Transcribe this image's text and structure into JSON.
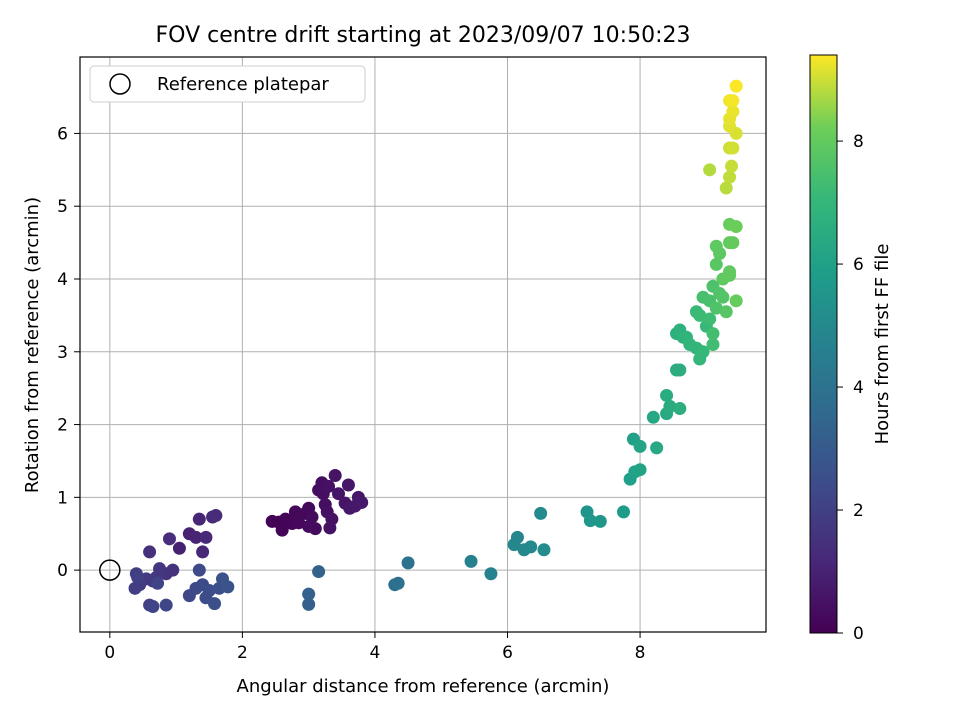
{
  "chart_data": {
    "type": "scatter",
    "title": "FOV centre drift starting at 2023/09/07 10:50:23",
    "xlabel": "Angular distance from reference (arcmin)",
    "ylabel": "Rotation from reference (arcmin)",
    "xlim": [
      -0.45,
      9.9
    ],
    "ylim": [
      -0.85,
      7.05
    ],
    "x_ticks": [
      0,
      2,
      4,
      6,
      8
    ],
    "y_ticks": [
      0,
      1,
      2,
      3,
      4,
      5,
      6
    ],
    "grid": true,
    "legend": {
      "placement": "top-left",
      "entries": [
        "Reference platepar"
      ]
    },
    "reference_point": {
      "name": "Reference platepar",
      "x": 0,
      "y": 0,
      "marker": "open-circle"
    },
    "colorbar": {
      "label": "Hours from first FF file",
      "min": 0,
      "max": 9.4,
      "ticks": [
        0,
        2,
        4,
        6,
        8
      ],
      "colormap": "viridis"
    },
    "points": [
      {
        "x": 2.45,
        "y": 0.67,
        "h": 0.05
      },
      {
        "x": 2.55,
        "y": 0.66,
        "h": 0.08
      },
      {
        "x": 2.6,
        "y": 0.55,
        "h": 0.1
      },
      {
        "x": 2.65,
        "y": 0.7,
        "h": 0.12
      },
      {
        "x": 2.75,
        "y": 0.64,
        "h": 0.15
      },
      {
        "x": 2.8,
        "y": 0.8,
        "h": 0.18
      },
      {
        "x": 2.85,
        "y": 0.65,
        "h": 0.2
      },
      {
        "x": 2.95,
        "y": 0.78,
        "h": 0.22
      },
      {
        "x": 3.0,
        "y": 0.85,
        "h": 0.25
      },
      {
        "x": 3.0,
        "y": 0.6,
        "h": 0.28
      },
      {
        "x": 3.05,
        "y": 0.73,
        "h": 0.3
      },
      {
        "x": 3.1,
        "y": 0.57,
        "h": 0.32
      },
      {
        "x": 3.15,
        "y": 1.1,
        "h": 0.35
      },
      {
        "x": 3.2,
        "y": 1.2,
        "h": 0.38
      },
      {
        "x": 3.22,
        "y": 1.05,
        "h": 0.4
      },
      {
        "x": 3.25,
        "y": 0.9,
        "h": 0.42
      },
      {
        "x": 3.28,
        "y": 0.8,
        "h": 0.45
      },
      {
        "x": 3.3,
        "y": 1.15,
        "h": 0.48
      },
      {
        "x": 3.32,
        "y": 0.58,
        "h": 0.5
      },
      {
        "x": 3.35,
        "y": 0.7,
        "h": 0.52
      },
      {
        "x": 3.4,
        "y": 1.3,
        "h": 0.55
      },
      {
        "x": 3.45,
        "y": 1.05,
        "h": 0.58
      },
      {
        "x": 3.55,
        "y": 0.92,
        "h": 0.6
      },
      {
        "x": 3.6,
        "y": 1.17,
        "h": 0.62
      },
      {
        "x": 3.62,
        "y": 0.85,
        "h": 0.65
      },
      {
        "x": 3.7,
        "y": 0.88,
        "h": 0.68
      },
      {
        "x": 3.75,
        "y": 1.0,
        "h": 0.7
      },
      {
        "x": 3.8,
        "y": 0.93,
        "h": 0.72
      },
      {
        "x": 1.05,
        "y": 0.3,
        "h": 0.95
      },
      {
        "x": 1.2,
        "y": 0.5,
        "h": 1.0
      },
      {
        "x": 1.3,
        "y": 0.45,
        "h": 1.05
      },
      {
        "x": 1.35,
        "y": 0.7,
        "h": 1.1
      },
      {
        "x": 1.4,
        "y": 0.25,
        "h": 1.15
      },
      {
        "x": 1.45,
        "y": 0.45,
        "h": 1.2
      },
      {
        "x": 1.55,
        "y": 0.73,
        "h": 1.25
      },
      {
        "x": 1.6,
        "y": 0.75,
        "h": 1.3
      },
      {
        "x": 0.9,
        "y": 0.43,
        "h": 1.35
      },
      {
        "x": 0.6,
        "y": 0.25,
        "h": 1.45
      },
      {
        "x": 0.95,
        "y": 0.0,
        "h": 1.55
      },
      {
        "x": 0.85,
        "y": -0.05,
        "h": 1.6
      },
      {
        "x": 0.75,
        "y": 0.02,
        "h": 1.65
      },
      {
        "x": 0.7,
        "y": -0.1,
        "h": 1.7
      },
      {
        "x": 0.65,
        "y": -0.15,
        "h": 1.75
      },
      {
        "x": 0.55,
        "y": -0.12,
        "h": 1.8
      },
      {
        "x": 0.45,
        "y": -0.2,
        "h": 1.85
      },
      {
        "x": 0.4,
        "y": -0.05,
        "h": 1.9
      },
      {
        "x": 0.38,
        "y": -0.25,
        "h": 1.95
      },
      {
        "x": 0.42,
        "y": -0.1,
        "h": 2.0
      },
      {
        "x": 0.6,
        "y": -0.48,
        "h": 2.05
      },
      {
        "x": 0.65,
        "y": -0.5,
        "h": 2.1
      },
      {
        "x": 0.72,
        "y": -0.18,
        "h": 2.15
      },
      {
        "x": 0.85,
        "y": -0.48,
        "h": 2.2
      },
      {
        "x": 1.2,
        "y": -0.35,
        "h": 2.25
      },
      {
        "x": 1.3,
        "y": -0.25,
        "h": 2.3
      },
      {
        "x": 1.35,
        "y": 0.0,
        "h": 2.35
      },
      {
        "x": 1.4,
        "y": -0.2,
        "h": 2.4
      },
      {
        "x": 1.45,
        "y": -0.38,
        "h": 2.45
      },
      {
        "x": 1.5,
        "y": -0.28,
        "h": 2.5
      },
      {
        "x": 1.58,
        "y": -0.46,
        "h": 2.55
      },
      {
        "x": 1.65,
        "y": -0.25,
        "h": 2.6
      },
      {
        "x": 1.7,
        "y": -0.12,
        "h": 2.65
      },
      {
        "x": 1.78,
        "y": -0.23,
        "h": 2.7
      },
      {
        "x": 3.0,
        "y": -0.47,
        "h": 3.2
      },
      {
        "x": 3.0,
        "y": -0.33,
        "h": 3.25
      },
      {
        "x": 3.15,
        "y": -0.02,
        "h": 3.3
      },
      {
        "x": 4.3,
        "y": -0.2,
        "h": 3.9
      },
      {
        "x": 4.35,
        "y": -0.18,
        "h": 3.95
      },
      {
        "x": 4.5,
        "y": 0.1,
        "h": 4.0
      },
      {
        "x": 5.45,
        "y": 0.12,
        "h": 4.6
      },
      {
        "x": 5.75,
        "y": -0.05,
        "h": 4.7
      },
      {
        "x": 6.1,
        "y": 0.35,
        "h": 4.85
      },
      {
        "x": 6.15,
        "y": 0.45,
        "h": 4.9
      },
      {
        "x": 6.25,
        "y": 0.28,
        "h": 4.95
      },
      {
        "x": 6.35,
        "y": 0.32,
        "h": 5.0
      },
      {
        "x": 6.5,
        "y": 0.78,
        "h": 5.05
      },
      {
        "x": 6.55,
        "y": 0.28,
        "h": 5.1
      },
      {
        "x": 7.2,
        "y": 0.8,
        "h": 5.5
      },
      {
        "x": 7.25,
        "y": 0.68,
        "h": 5.55
      },
      {
        "x": 7.4,
        "y": 0.67,
        "h": 5.6
      },
      {
        "x": 7.75,
        "y": 0.8,
        "h": 5.8
      },
      {
        "x": 7.85,
        "y": 1.25,
        "h": 5.95
      },
      {
        "x": 7.9,
        "y": 1.8,
        "h": 6.0
      },
      {
        "x": 7.92,
        "y": 1.35,
        "h": 6.05
      },
      {
        "x": 8.0,
        "y": 1.38,
        "h": 6.1
      },
      {
        "x": 8.0,
        "y": 1.7,
        "h": 6.15
      },
      {
        "x": 8.2,
        "y": 2.1,
        "h": 6.3
      },
      {
        "x": 8.25,
        "y": 1.68,
        "h": 6.35
      },
      {
        "x": 8.4,
        "y": 2.15,
        "h": 6.4
      },
      {
        "x": 8.45,
        "y": 2.25,
        "h": 6.45
      },
      {
        "x": 8.4,
        "y": 2.4,
        "h": 6.5
      },
      {
        "x": 8.55,
        "y": 2.75,
        "h": 6.55
      },
      {
        "x": 8.6,
        "y": 2.75,
        "h": 6.6
      },
      {
        "x": 8.6,
        "y": 2.22,
        "h": 6.65
      },
      {
        "x": 8.55,
        "y": 3.25,
        "h": 6.7
      },
      {
        "x": 8.6,
        "y": 3.3,
        "h": 6.75
      },
      {
        "x": 8.65,
        "y": 3.2,
        "h": 6.8
      },
      {
        "x": 8.7,
        "y": 3.2,
        "h": 6.85
      },
      {
        "x": 8.75,
        "y": 3.1,
        "h": 6.9
      },
      {
        "x": 8.85,
        "y": 3.05,
        "h": 6.95
      },
      {
        "x": 8.9,
        "y": 2.9,
        "h": 7.0
      },
      {
        "x": 8.95,
        "y": 3.0,
        "h": 7.05
      },
      {
        "x": 9.0,
        "y": 3.35,
        "h": 7.1
      },
      {
        "x": 8.85,
        "y": 3.55,
        "h": 7.15
      },
      {
        "x": 8.9,
        "y": 3.5,
        "h": 7.2
      },
      {
        "x": 9.05,
        "y": 3.45,
        "h": 7.25
      },
      {
        "x": 9.1,
        "y": 3.1,
        "h": 7.3
      },
      {
        "x": 9.1,
        "y": 3.25,
        "h": 7.35
      },
      {
        "x": 8.95,
        "y": 3.75,
        "h": 7.45
      },
      {
        "x": 9.05,
        "y": 3.7,
        "h": 7.5
      },
      {
        "x": 9.1,
        "y": 3.9,
        "h": 7.55
      },
      {
        "x": 9.15,
        "y": 3.6,
        "h": 7.6
      },
      {
        "x": 9.2,
        "y": 3.8,
        "h": 7.65
      },
      {
        "x": 9.25,
        "y": 3.75,
        "h": 7.7
      },
      {
        "x": 9.3,
        "y": 3.55,
        "h": 7.75
      },
      {
        "x": 9.15,
        "y": 4.2,
        "h": 7.8
      },
      {
        "x": 9.2,
        "y": 4.35,
        "h": 7.85
      },
      {
        "x": 9.15,
        "y": 4.45,
        "h": 7.9
      },
      {
        "x": 9.25,
        "y": 4.0,
        "h": 7.92
      },
      {
        "x": 9.35,
        "y": 4.1,
        "h": 7.95
      },
      {
        "x": 9.35,
        "y": 4.05,
        "h": 7.97
      },
      {
        "x": 9.35,
        "y": 4.5,
        "h": 8.0
      },
      {
        "x": 9.4,
        "y": 4.5,
        "h": 8.03
      },
      {
        "x": 9.45,
        "y": 3.7,
        "h": 8.05
      },
      {
        "x": 9.35,
        "y": 4.75,
        "h": 8.1
      },
      {
        "x": 9.45,
        "y": 4.72,
        "h": 8.15
      },
      {
        "x": 9.05,
        "y": 5.5,
        "h": 8.8
      },
      {
        "x": 9.3,
        "y": 5.25,
        "h": 8.85
      },
      {
        "x": 9.35,
        "y": 5.4,
        "h": 8.9
      },
      {
        "x": 9.38,
        "y": 5.55,
        "h": 8.95
      },
      {
        "x": 9.35,
        "y": 5.8,
        "h": 9.0
      },
      {
        "x": 9.4,
        "y": 5.8,
        "h": 9.05
      },
      {
        "x": 9.45,
        "y": 6.0,
        "h": 9.1
      },
      {
        "x": 9.35,
        "y": 6.1,
        "h": 9.15
      },
      {
        "x": 9.35,
        "y": 6.2,
        "h": 9.2
      },
      {
        "x": 9.4,
        "y": 6.3,
        "h": 9.25
      },
      {
        "x": 9.35,
        "y": 6.45,
        "h": 9.3
      },
      {
        "x": 9.4,
        "y": 6.45,
        "h": 9.33
      },
      {
        "x": 9.45,
        "y": 6.65,
        "h": 9.38
      }
    ]
  }
}
